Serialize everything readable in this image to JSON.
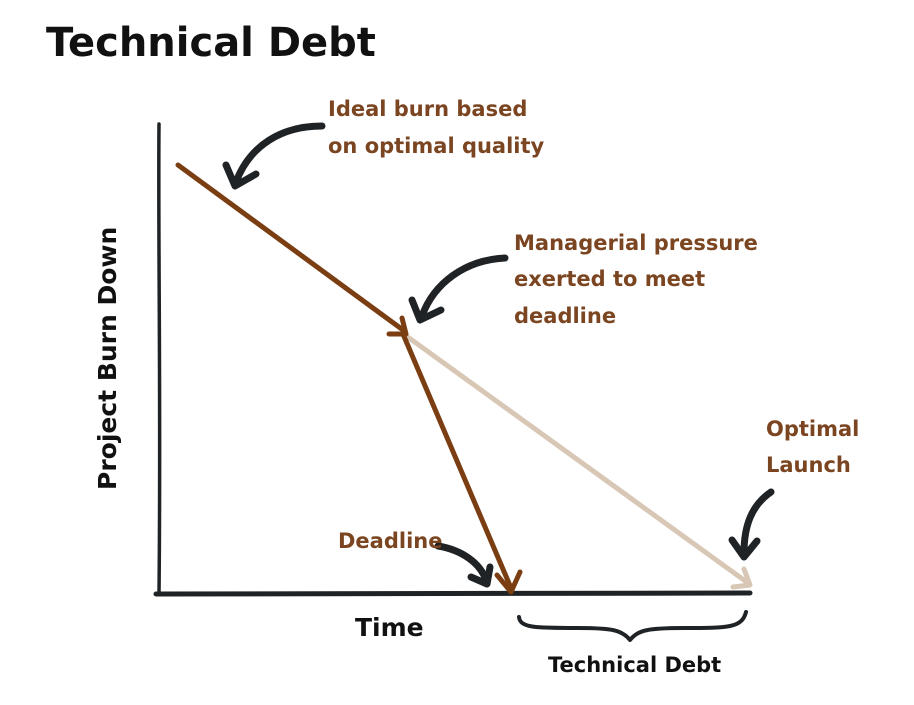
{
  "title": "Technical Debt",
  "axes": {
    "x_label": "Time",
    "y_label": "Project Burn Down"
  },
  "annotations": {
    "ideal_burn": [
      "Ideal burn based",
      "on optimal quality"
    ],
    "pressure": [
      "Managerial pressure",
      "exerted to meet",
      "deadline"
    ],
    "optimal_launch": [
      "Optimal",
      "Launch"
    ],
    "deadline": "Deadline"
  },
  "bracket_label": "Technical Debt",
  "colors": {
    "ink": "#1f2326",
    "brown": "#7a3e12",
    "annotation_text": "#7a4520",
    "faded": "#d9c7b6"
  },
  "icons": [
    "curved-arrow-ideal-icon",
    "curved-arrow-pressure-icon",
    "curved-arrow-launch-icon",
    "curved-arrow-deadline-icon",
    "curly-brace-icon"
  ]
}
